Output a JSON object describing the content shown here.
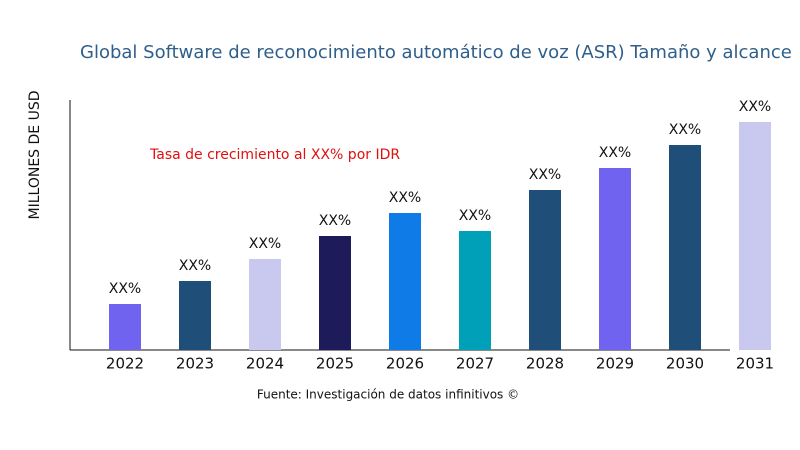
{
  "chart_data": {
    "type": "bar",
    "title": "Global Software de reconocimiento automático de voz (ASR) Tamaño y alcance",
    "y_label": "MILLONES DE USD",
    "annotation": "Tasa de crecimiento al XX% por IDR",
    "source": "Fuente: Investigación de datos infinitivos ©",
    "categories": [
      "2022",
      "2023",
      "2024",
      "2025",
      "2026",
      "2027",
      "2028",
      "2029",
      "2030",
      "2031"
    ],
    "values": [
      46,
      69,
      91,
      114,
      137,
      119,
      160,
      182,
      205,
      228
    ],
    "value_labels": [
      "XX%",
      "XX%",
      "XX%",
      "XX%",
      "XX%",
      "XX%",
      "XX%",
      "XX%",
      "XX%",
      "XX%"
    ],
    "colors": [
      "#7063f0",
      "#1f4e79",
      "#c9c9f0",
      "#1e1b5a",
      "#0f7be6",
      "#00a0b8",
      "#1f4e79",
      "#7063f0",
      "#1f4e79",
      "#c9c9f0"
    ],
    "ylim": [
      0,
      250
    ]
  }
}
